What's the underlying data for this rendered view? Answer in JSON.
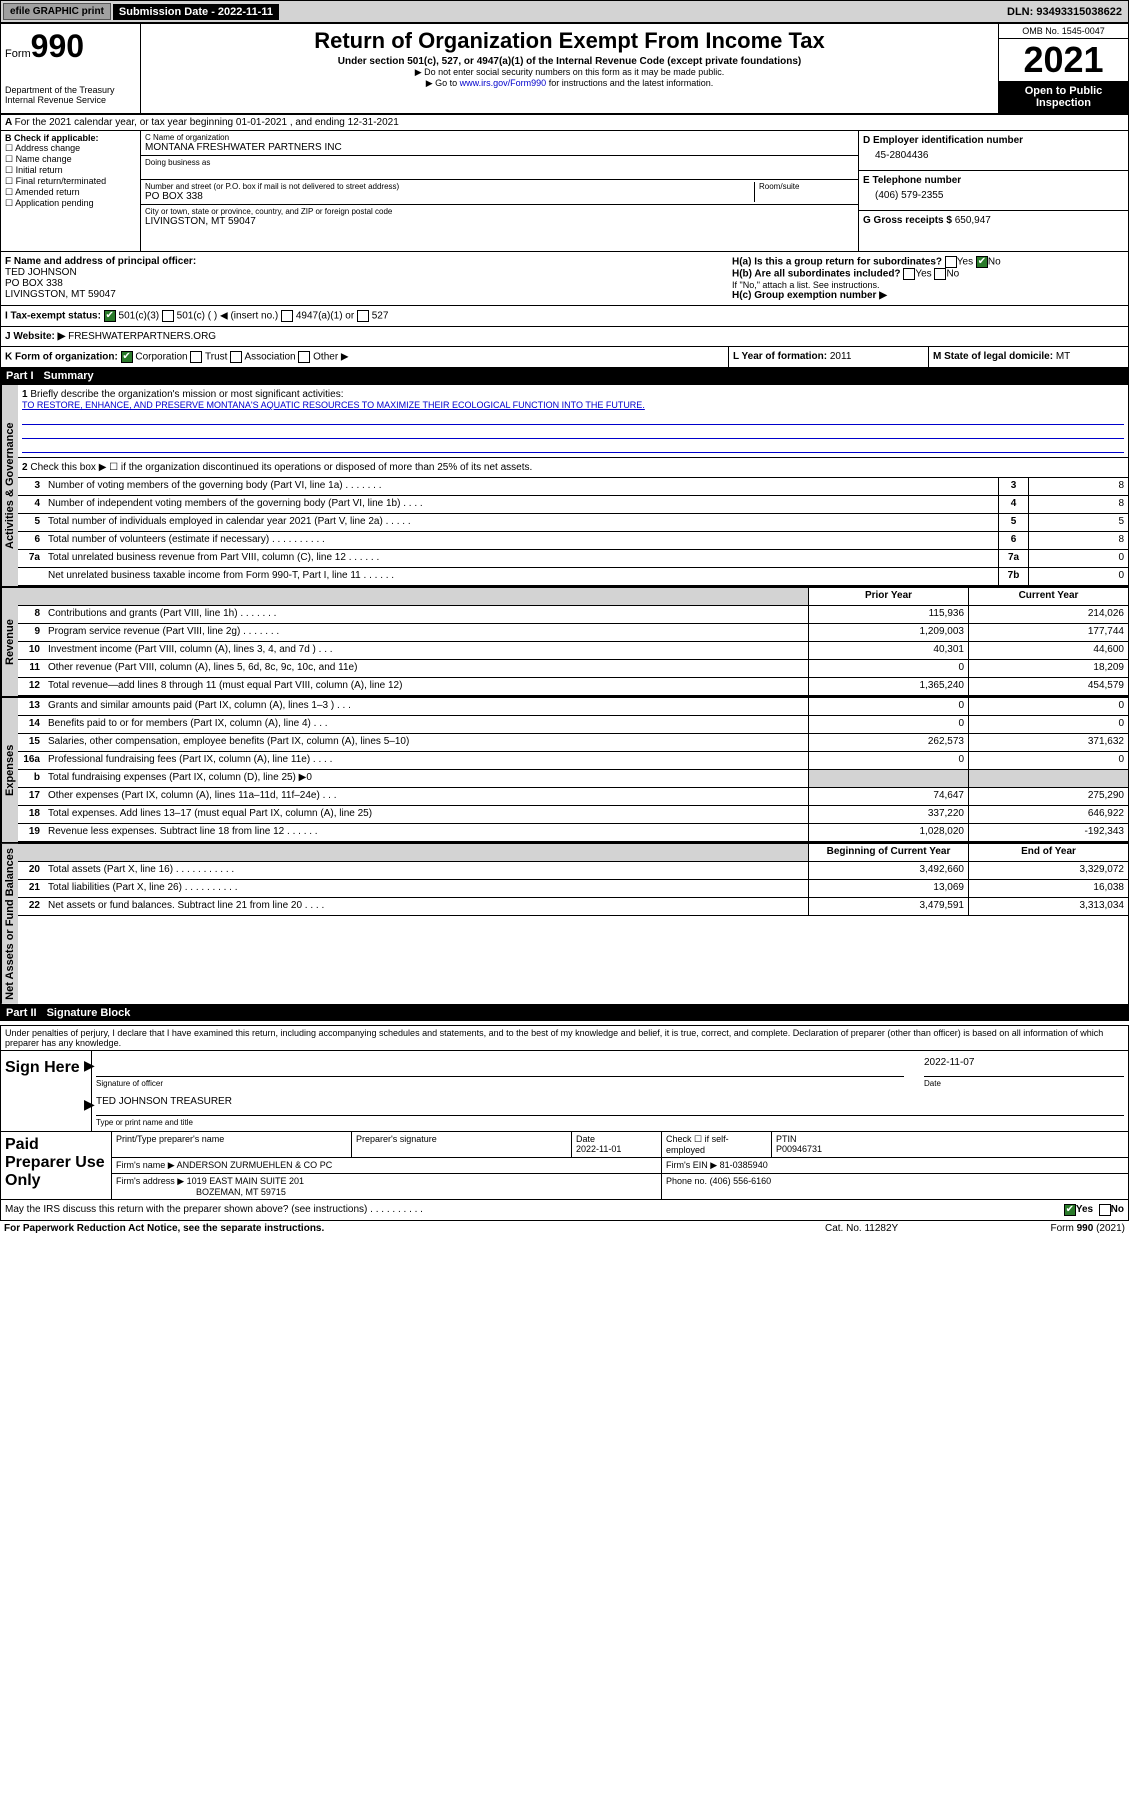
{
  "topbar": {
    "efile": "efile GRAPHIC print",
    "submission_label": "Submission Date - 2022-11-11",
    "dln": "DLN: 93493315038622"
  },
  "header": {
    "form_prefix": "Form",
    "form_num": "990",
    "dept": "Department of the Treasury\nInternal Revenue Service",
    "title": "Return of Organization Exempt From Income Tax",
    "subtitle": "Under section 501(c), 527, or 4947(a)(1) of the Internal Revenue Code (except private foundations)",
    "note1": "▶ Do not enter social security numbers on this form as it may be made public.",
    "note2_pre": "▶ Go to ",
    "note2_link": "www.irs.gov/Form990",
    "note2_post": " for instructions and the latest information.",
    "omb": "OMB No. 1545-0047",
    "year": "2021",
    "inspect": "Open to Public Inspection"
  },
  "lineA": "For the 2021 calendar year, or tax year beginning 01-01-2021   , and ending 12-31-2021",
  "colB": {
    "label": "B Check if applicable:",
    "items": [
      "Address change",
      "Name change",
      "Initial return",
      "Final return/terminated",
      "Amended return",
      "Application pending"
    ]
  },
  "colC": {
    "name_lbl": "C Name of organization",
    "name": "MONTANA FRESHWATER PARTNERS INC",
    "dba_lbl": "Doing business as",
    "addr_lbl": "Number and street (or P.O. box if mail is not delivered to street address)",
    "room_lbl": "Room/suite",
    "addr": "PO BOX 338",
    "city_lbl": "City or town, state or province, country, and ZIP or foreign postal code",
    "city": "LIVINGSTON, MT  59047"
  },
  "colD": {
    "ein_lbl": "D Employer identification number",
    "ein": "45-2804436",
    "tel_lbl": "E Telephone number",
    "tel": "(406) 579-2355",
    "gross_lbl": "G Gross receipts $",
    "gross": "650,947"
  },
  "rowF": {
    "lbl": "F Name and address of principal officer:",
    "name": "TED JOHNSON",
    "addr1": "PO BOX 338",
    "addr2": "LIVINGSTON, MT  59047"
  },
  "rowH": {
    "a_lbl": "H(a)  Is this a group return for subordinates?",
    "a_yes": "Yes",
    "a_no": "No",
    "b_lbl": "H(b)  Are all subordinates included?",
    "b_yes": "Yes",
    "b_no": "No",
    "b_note": "If \"No,\" attach a list. See instructions.",
    "c_lbl": "H(c)  Group exemption number ▶"
  },
  "rowI": {
    "lbl": "I  Tax-exempt status:",
    "o1": "501(c)(3)",
    "o2": "501(c) (  ) ◀ (insert no.)",
    "o3": "4947(a)(1) or",
    "o4": "527"
  },
  "rowJ": {
    "lbl": "J  Website: ▶",
    "val": "FRESHWATERPARTNERS.ORG"
  },
  "rowK": {
    "lbl": "K Form of organization:",
    "o": [
      "Corporation",
      "Trust",
      "Association",
      "Other ▶"
    ]
  },
  "rowL": {
    "lbl": "L Year of formation:",
    "val": "2011"
  },
  "rowM": {
    "lbl": "M State of legal domicile:",
    "val": "MT"
  },
  "part1": {
    "title": "Part I",
    "sub": "Summary"
  },
  "summary": {
    "line1_lbl": "Briefly describe the organization's mission or most significant activities:",
    "line1_val": "TO RESTORE, ENHANCE, AND PRESERVE MONTANA'S AQUATIC RESOURCES TO MAXIMIZE THEIR ECOLOGICAL FUNCTION INTO THE FUTURE.",
    "line2": "Check this box ▶ ☐  if the organization discontinued its operations or disposed of more than 25% of its net assets.",
    "rows_gov": [
      {
        "n": "3",
        "d": "Number of voting members of the governing body (Part VI, line 1a)   .    .    .    .    .    .    .",
        "b": "3",
        "v": "8"
      },
      {
        "n": "4",
        "d": "Number of independent voting members of the governing body (Part VI, line 1b)   .    .    .    .",
        "b": "4",
        "v": "8"
      },
      {
        "n": "5",
        "d": "Total number of individuals employed in calendar year 2021 (Part V, line 2a)   .    .    .    .    .",
        "b": "5",
        "v": "5"
      },
      {
        "n": "6",
        "d": "Total number of volunteers (estimate if necessary)   .    .    .    .    .    .    .    .    .    .",
        "b": "6",
        "v": "8"
      },
      {
        "n": "7a",
        "d": "Total unrelated business revenue from Part VIII, column (C), line 12   .    .    .    .    .    .",
        "b": "7a",
        "v": "0"
      },
      {
        "n": "",
        "d": "Net unrelated business taxable income from Form 990-T, Part I, line 11   .    .    .    .    .    .",
        "b": "7b",
        "v": "0"
      }
    ],
    "hdr_prior": "Prior Year",
    "hdr_curr": "Current Year",
    "rows_rev": [
      {
        "n": "8",
        "d": "Contributions and grants (Part VIII, line 1h)   .    .    .    .    .    .    .",
        "p": "115,936",
        "c": "214,026"
      },
      {
        "n": "9",
        "d": "Program service revenue (Part VIII, line 2g)   .    .    .    .    .    .    .",
        "p": "1,209,003",
        "c": "177,744"
      },
      {
        "n": "10",
        "d": "Investment income (Part VIII, column (A), lines 3, 4, and 7d )   .    .    .",
        "p": "40,301",
        "c": "44,600"
      },
      {
        "n": "11",
        "d": "Other revenue (Part VIII, column (A), lines 5, 6d, 8c, 9c, 10c, and 11e)",
        "p": "0",
        "c": "18,209"
      },
      {
        "n": "12",
        "d": "Total revenue—add lines 8 through 11 (must equal Part VIII, column (A), line 12)",
        "p": "1,365,240",
        "c": "454,579"
      }
    ],
    "rows_exp": [
      {
        "n": "13",
        "d": "Grants and similar amounts paid (Part IX, column (A), lines 1–3 )   .    .    .",
        "p": "0",
        "c": "0"
      },
      {
        "n": "14",
        "d": "Benefits paid to or for members (Part IX, column (A), line 4)   .    .    .",
        "p": "0",
        "c": "0"
      },
      {
        "n": "15",
        "d": "Salaries, other compensation, employee benefits (Part IX, column (A), lines 5–10)",
        "p": "262,573",
        "c": "371,632"
      },
      {
        "n": "16a",
        "d": "Professional fundraising fees (Part IX, column (A), line 11e)   .    .    .    .",
        "p": "0",
        "c": "0"
      },
      {
        "n": "b",
        "d": "Total fundraising expenses (Part IX, column (D), line 25) ▶0",
        "p": "",
        "c": "",
        "grey": true
      },
      {
        "n": "17",
        "d": "Other expenses (Part IX, column (A), lines 11a–11d, 11f–24e)   .    .    .",
        "p": "74,647",
        "c": "275,290"
      },
      {
        "n": "18",
        "d": "Total expenses. Add lines 13–17 (must equal Part IX, column (A), line 25)",
        "p": "337,220",
        "c": "646,922"
      },
      {
        "n": "19",
        "d": "Revenue less expenses. Subtract line 18 from line 12   .    .    .    .    .    .",
        "p": "1,028,020",
        "c": "-192,343"
      }
    ],
    "hdr_beg": "Beginning of Current Year",
    "hdr_end": "End of Year",
    "rows_net": [
      {
        "n": "20",
        "d": "Total assets (Part X, line 16)   .    .    .    .    .    .    .    .    .    .    .",
        "p": "3,492,660",
        "c": "3,329,072"
      },
      {
        "n": "21",
        "d": "Total liabilities (Part X, line 26)   .    .    .    .    .    .    .    .    .    .",
        "p": "13,069",
        "c": "16,038"
      },
      {
        "n": "22",
        "d": "Net assets or fund balances. Subtract line 21 from line 20   .    .    .    .",
        "p": "3,479,591",
        "c": "3,313,034"
      }
    ],
    "vtabs": {
      "gov": "Activities & Governance",
      "rev": "Revenue",
      "exp": "Expenses",
      "net": "Net Assets or Fund Balances"
    }
  },
  "part2": {
    "title": "Part II",
    "sub": "Signature Block"
  },
  "sig": {
    "note": "Under penalties of perjury, I declare that I have examined this return, including accompanying schedules and statements, and to the best of my knowledge and belief, it is true, correct, and complete. Declaration of preparer (other than officer) is based on all information of which preparer has any knowledge.",
    "here": "Sign Here",
    "officer_lbl": "Signature of officer",
    "date_lbl": "Date",
    "date": "2022-11-07",
    "name": "TED JOHNSON  TREASURER",
    "name_lbl": "Type or print name and title"
  },
  "prep": {
    "label": "Paid Preparer Use Only",
    "c1": "Print/Type preparer's name",
    "c2": "Preparer's signature",
    "c3": "Date",
    "c3v": "2022-11-01",
    "c4": "Check ☐ if self-employed",
    "c5": "PTIN",
    "c5v": "P00946731",
    "firm_lbl": "Firm's name      ▶",
    "firm": "ANDERSON ZURMUEHLEN & CO PC",
    "ein_lbl": "Firm's EIN ▶",
    "ein": "81-0385940",
    "addr_lbl": "Firm's address ▶",
    "addr1": "1019 EAST MAIN SUITE 201",
    "addr2": "BOZEMAN, MT  59715",
    "phone_lbl": "Phone no.",
    "phone": "(406) 556-6160"
  },
  "discuss": {
    "q": "May the IRS discuss this return with the preparer shown above? (see instructions)   .    .    .    .    .    .    .    .    .    .",
    "yes": "Yes",
    "no": "No"
  },
  "footer": {
    "l": "For Paperwork Reduction Act Notice, see the separate instructions.",
    "m": "Cat. No. 11282Y",
    "r": "Form 990 (2021)"
  }
}
